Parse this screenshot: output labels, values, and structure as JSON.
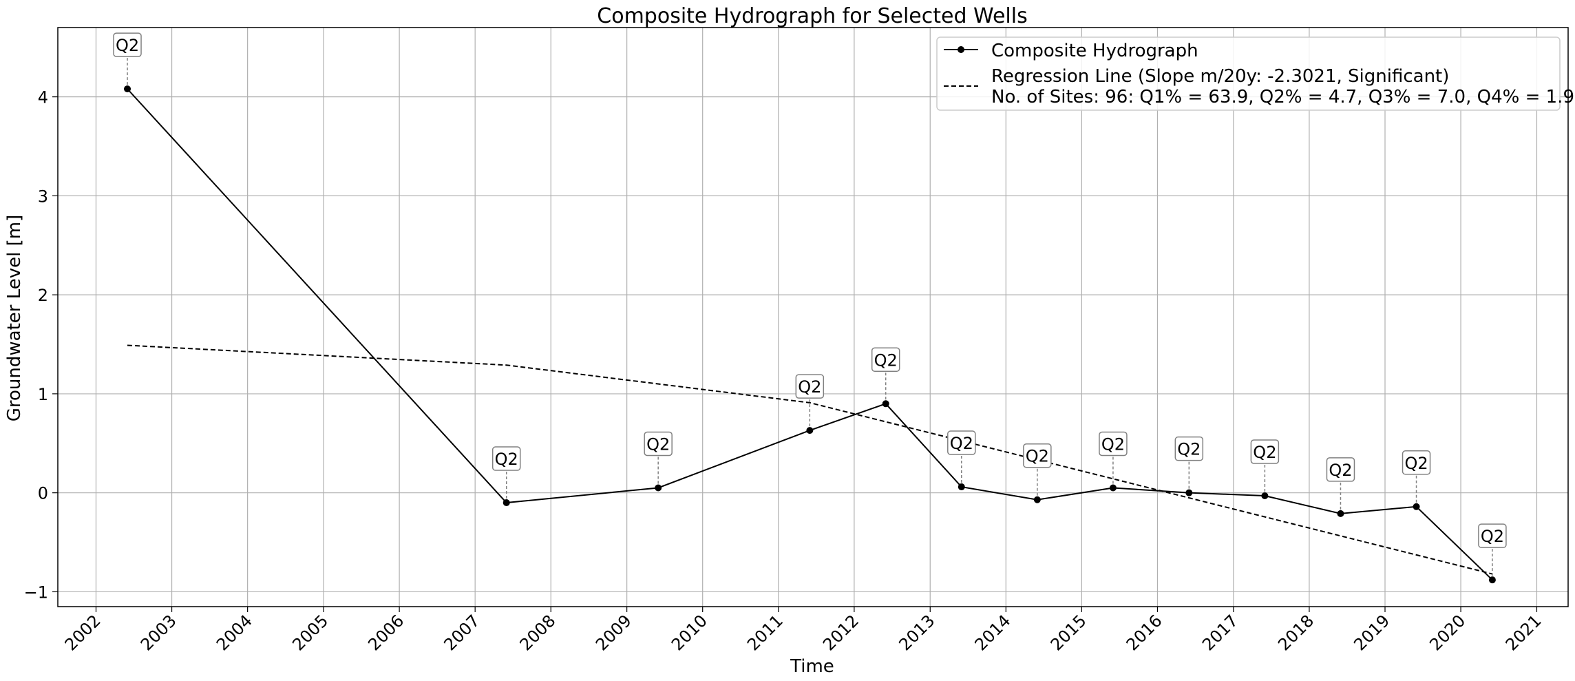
{
  "chart_data": {
    "type": "line",
    "title": "Composite Hydrograph for Selected Wells",
    "xlabel": "Time",
    "ylabel": "Groundwater Level [m]",
    "xlim": [
      "2001-07-01",
      "2021-06-01"
    ],
    "ylim": [
      -1.15,
      4.7
    ],
    "x_ticks": [
      "2002",
      "2003",
      "2004",
      "2005",
      "2006",
      "2007",
      "2008",
      "2009",
      "2010",
      "2011",
      "2012",
      "2013",
      "2014",
      "2015",
      "2016",
      "2017",
      "2018",
      "2019",
      "2020",
      "2021"
    ],
    "y_ticks": [
      "−1",
      "0",
      "1",
      "2",
      "3",
      "4"
    ],
    "y_tick_values": [
      -1,
      0,
      1,
      2,
      3,
      4
    ],
    "grid": true,
    "legend_position": "top-right",
    "series": [
      {
        "name": "Composite Hydrograph",
        "color": "#000000",
        "style": "solid-with-markers",
        "x": [
          "2002-06-01",
          "2007-06-01",
          "2009-06-01",
          "2011-06-01",
          "2012-06-01",
          "2013-06-01",
          "2014-06-01",
          "2015-06-01",
          "2016-06-01",
          "2017-06-01",
          "2018-06-01",
          "2019-06-01",
          "2020-06-01"
        ],
        "y": [
          4.08,
          -0.1,
          0.05,
          0.63,
          0.9,
          0.06,
          -0.07,
          0.05,
          0.0,
          -0.03,
          -0.21,
          -0.14,
          -0.88
        ]
      },
      {
        "name": "Regression Line (Slope m/20y: -2.3021, Significant)",
        "color": "#000000",
        "style": "dashed",
        "x": [
          "2002-06-01",
          "2007-06-01",
          "2011-06-01",
          "2020-06-01"
        ],
        "y": [
          1.49,
          1.29,
          0.91,
          -0.82
        ]
      }
    ],
    "legend": [
      {
        "label": "Composite Hydrograph",
        "style": "solid-with-markers"
      },
      {
        "label": "Regression Line (Slope m/20y: -2.3021, Significant)",
        "style": "dashed"
      },
      {
        "label": "No. of Sites: 96: Q1% = 63.9, Q2% = 4.7, Q3% = 7.0, Q4% = 1.9",
        "style": "none"
      }
    ],
    "annotations": [
      {
        "text": "Q2",
        "x": "2002-06-01",
        "y": 4.08
      },
      {
        "text": "Q2",
        "x": "2007-06-01",
        "y": -0.1
      },
      {
        "text": "Q2",
        "x": "2009-06-01",
        "y": 0.05
      },
      {
        "text": "Q2",
        "x": "2011-06-01",
        "y": 0.63
      },
      {
        "text": "Q2",
        "x": "2012-06-01",
        "y": 0.9
      },
      {
        "text": "Q2",
        "x": "2013-06-01",
        "y": 0.06
      },
      {
        "text": "Q2",
        "x": "2014-06-01",
        "y": -0.07
      },
      {
        "text": "Q2",
        "x": "2015-06-01",
        "y": 0.05
      },
      {
        "text": "Q2",
        "x": "2016-06-01",
        "y": 0.0
      },
      {
        "text": "Q2",
        "x": "2017-06-01",
        "y": -0.03
      },
      {
        "text": "Q2",
        "x": "2018-06-01",
        "y": -0.21
      },
      {
        "text": "Q2",
        "x": "2019-06-01",
        "y": -0.14
      },
      {
        "text": "Q2",
        "x": "2020-06-01",
        "y": -0.88
      }
    ]
  }
}
